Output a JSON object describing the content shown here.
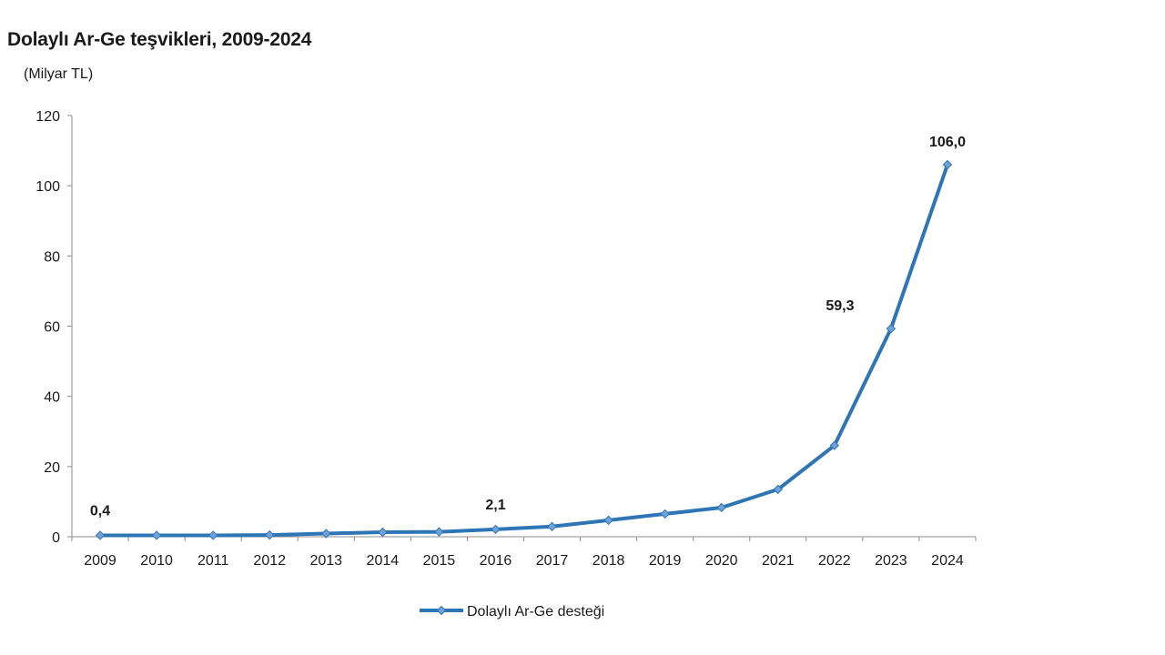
{
  "chart_data": {
    "type": "line",
    "title": "Dolaylı Ar-Ge teşvikleri, 2009-2024",
    "unit_label": "(Milyar TL)",
    "xlabel": "",
    "ylabel": "",
    "categories": [
      "2009",
      "2010",
      "2011",
      "2012",
      "2013",
      "2014",
      "2015",
      "2016",
      "2017",
      "2018",
      "2019",
      "2020",
      "2021",
      "2022",
      "2023",
      "2024"
    ],
    "series": [
      {
        "name": "Dolaylı Ar-Ge desteği",
        "values": [
          0.4,
          0.4,
          0.4,
          0.5,
          0.9,
          1.3,
          1.4,
          2.1,
          2.9,
          4.7,
          6.5,
          8.3,
          13.5,
          26.0,
          59.3,
          106.0
        ],
        "color": "#2e75b6"
      }
    ],
    "ylim": [
      0,
      120
    ],
    "yticks": [
      "0",
      "20",
      "40",
      "60",
      "80",
      "100",
      "120"
    ],
    "data_labels": [
      {
        "category": "2009",
        "text": "0,4"
      },
      {
        "category": "2016",
        "text": "2,1"
      },
      {
        "category": "2023",
        "text": "59,3"
      },
      {
        "category": "2024",
        "text": "106,0"
      }
    ],
    "grid": false,
    "legend": "bottom-center"
  }
}
